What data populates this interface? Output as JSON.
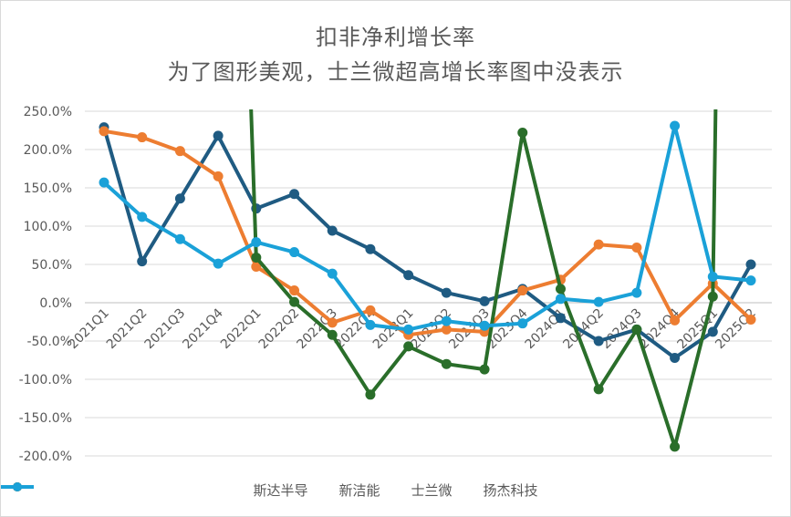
{
  "chart_data": {
    "type": "line",
    "title": "扣非净利增长率",
    "subtitle": "为了图形美观，士兰微超高增长率图中没表示",
    "categories": [
      "2021Q1",
      "2021Q2",
      "2021Q3",
      "2021Q4",
      "2022Q1",
      "2022Q2",
      "2022Q3",
      "2022Q4",
      "2023Q1",
      "2023Q2",
      "2023Q3",
      "2023Q4",
      "2024Q1",
      "2024Q2",
      "2024Q3",
      "2024Q4",
      "2025Q1",
      "2025Q2"
    ],
    "ylim": [
      -200,
      250
    ],
    "yticks": [
      250,
      200,
      150,
      100,
      50,
      0,
      -50,
      -100,
      -150,
      -200
    ],
    "ytick_labels": [
      "250.0%",
      "200.0%",
      "150.0%",
      "100.0%",
      "50.0%",
      "0.0%",
      "-50.0%",
      "-100.0%",
      "-150.0%",
      "-200.0%"
    ],
    "legend_position": "bottom",
    "series": [
      {
        "name": "斯达半导",
        "color": "#1f5b82",
        "values": [
          229,
          54,
          136,
          218,
          123,
          142,
          94,
          70,
          36,
          13,
          2,
          18,
          -20,
          -50,
          -35,
          -72,
          -38,
          50
        ]
      },
      {
        "name": "新洁能",
        "color": "#ed7d31",
        "values": [
          224,
          216,
          198,
          165,
          47,
          16,
          -26,
          -10,
          -42,
          -35,
          -38,
          16,
          30,
          76,
          72,
          -23,
          25,
          -22
        ]
      },
      {
        "name": "士兰微",
        "color": "#2a6e2a",
        "values": [
          null,
          null,
          null,
          null,
          59,
          1,
          -42,
          -120,
          -57,
          -80,
          -87,
          222,
          18,
          -113,
          -35,
          -188,
          8,
          null
        ],
        "offscale": [
          {
            "from": 4,
            "to_index": 3.85,
            "note": "up"
          },
          {
            "from": 16,
            "to_index": 16.08,
            "note": "up"
          }
        ]
      },
      {
        "name": "扬杰科技",
        "color": "#1aa1d8",
        "values": [
          157,
          112,
          83,
          51,
          79,
          66,
          38,
          -29,
          -35,
          -24,
          -30,
          -27,
          5,
          1,
          13,
          231,
          34,
          29
        ]
      }
    ]
  }
}
